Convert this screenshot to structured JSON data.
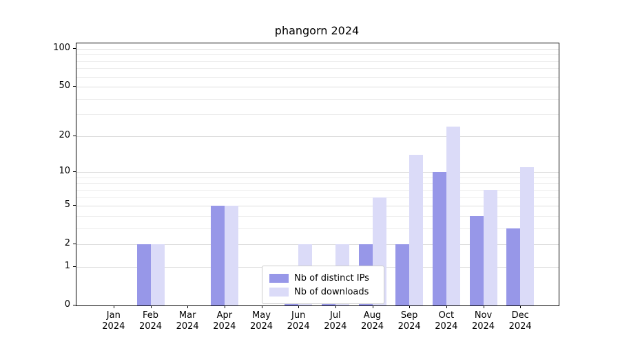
{
  "chart_data": {
    "type": "bar",
    "title": "phangorn 2024",
    "x_tick_months": [
      "Jan",
      "Feb",
      "Mar",
      "Apr",
      "May",
      "Jun",
      "Jul",
      "Aug",
      "Sep",
      "Oct",
      "Nov",
      "Dec"
    ],
    "x_tick_year": "2024",
    "series": [
      {
        "name": "Nb of distinct IPs",
        "color": "#9797e8",
        "values": [
          0,
          2,
          0,
          5,
          0,
          1,
          1,
          2,
          2,
          10,
          4,
          3
        ]
      },
      {
        "name": "Nb of downloads",
        "color": "#dbdbf8",
        "values": [
          0,
          2,
          0,
          5,
          0,
          2,
          2,
          6,
          14,
          24,
          7,
          11
        ]
      }
    ],
    "y_ticks": [
      0,
      1,
      2,
      5,
      10,
      20,
      50,
      100
    ],
    "y_minor_ticks": [
      3,
      4,
      6,
      7,
      8,
      9,
      30,
      40,
      60,
      70,
      80,
      90
    ],
    "y_scale": "log1p",
    "ylim": [
      0,
      110
    ],
    "grid": true,
    "legend_position": "bottom-center"
  }
}
